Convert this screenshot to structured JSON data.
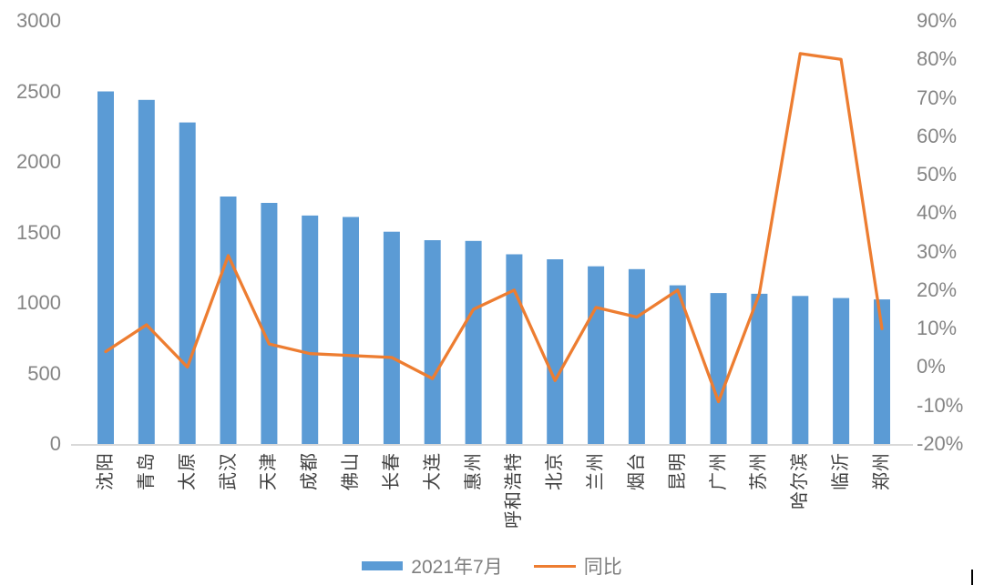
{
  "chart_data": {
    "type": "combo-bar-line",
    "title": "",
    "grid": false,
    "legend_position": "bottom",
    "categories": [
      "沈阳",
      "青岛",
      "太原",
      "武汉",
      "天津",
      "成都",
      "佛山",
      "长春",
      "大连",
      "惠州",
      "呼和浩特",
      "北京",
      "兰州",
      "烟台",
      "昆明",
      "广州",
      "苏州",
      "哈尔滨",
      "临沂",
      "郑州"
    ],
    "series": [
      {
        "name": "2021年7月",
        "type": "bar",
        "axis": "left",
        "color": "#5B9BD5",
        "values": [
          2500,
          2440,
          2280,
          1755,
          1710,
          1620,
          1610,
          1505,
          1445,
          1440,
          1345,
          1310,
          1260,
          1240,
          1125,
          1070,
          1065,
          1050,
          1035,
          1025
        ]
      },
      {
        "name": "同比",
        "type": "line",
        "axis": "right",
        "color": "#ED7D31",
        "values_pct": [
          4,
          11,
          0,
          29,
          6,
          3.5,
          3,
          2.5,
          -3,
          15,
          20,
          -3.5,
          15.5,
          13,
          20,
          -9,
          19,
          81.5,
          80,
          10
        ]
      }
    ],
    "left_axis": {
      "min": 0,
      "max": 3000,
      "tick_labels": [
        "3000",
        "2500",
        "2000",
        "1500",
        "1000",
        "500",
        "0"
      ]
    },
    "right_axis": {
      "min": -20,
      "max": 90,
      "tick_labels": [
        "90%",
        "80%",
        "70%",
        "60%",
        "50%",
        "40%",
        "30%",
        "20%",
        "10%",
        "0%",
        "-10%",
        "-20%"
      ]
    }
  },
  "colors": {
    "bar": "#5B9BD5",
    "line": "#ED7D31",
    "axis_text": "#858585",
    "category_text": "#404040",
    "baseline": "#D9D9D9",
    "cursor_mark": "#000000"
  }
}
